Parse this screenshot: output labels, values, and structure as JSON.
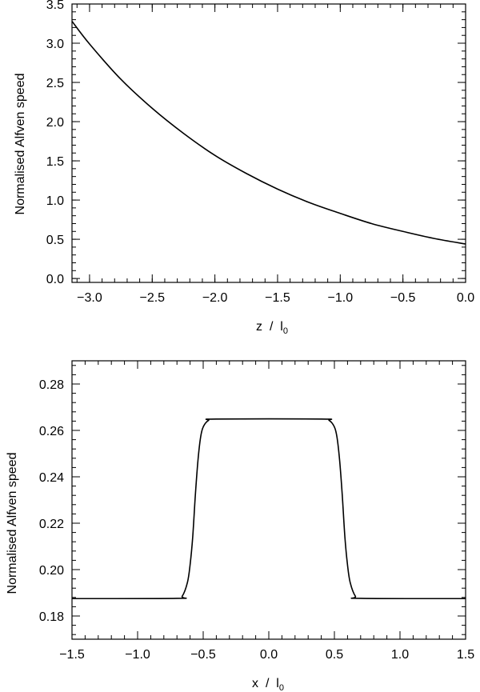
{
  "chart_data": [
    {
      "type": "line",
      "title": "",
      "xlabel": {
        "main": "z  /  l",
        "sub": "0"
      },
      "ylabel": "Normalised Alfven speed",
      "xlim": [
        -3.14,
        0.0
      ],
      "ylim": [
        -0.05,
        3.5
      ],
      "xticks": [
        -3.0,
        -2.5,
        -2.0,
        -1.5,
        -1.0,
        -0.5,
        0.0
      ],
      "xtick_labels": [
        "−3.0",
        "−2.5",
        "−2.0",
        "−1.5",
        "−1.0",
        "−0.5",
        "0.0"
      ],
      "yticks": [
        0.0,
        0.5,
        1.0,
        1.5,
        2.0,
        2.5,
        3.0,
        3.5
      ],
      "ytick_labels": [
        "0.0",
        "0.5",
        "1.0",
        "1.5",
        "2.0",
        "2.5",
        "3.0",
        "3.5"
      ],
      "grid": false,
      "series": [
        {
          "x": [
            -3.14,
            -3.0,
            -2.75,
            -2.5,
            -2.25,
            -2.0,
            -1.75,
            -1.5,
            -1.25,
            -1.0,
            -0.75,
            -0.5,
            -0.25,
            0.0
          ],
          "values": [
            3.28,
            2.99,
            2.54,
            2.17,
            1.85,
            1.57,
            1.34,
            1.14,
            0.97,
            0.83,
            0.7,
            0.6,
            0.51,
            0.44
          ]
        }
      ]
    },
    {
      "type": "line",
      "title": "",
      "xlabel": {
        "main": "x  /  l",
        "sub": "0"
      },
      "ylabel": "Normalised Alfven speed",
      "xlim": [
        -1.5,
        1.5
      ],
      "ylim": [
        0.17,
        0.29
      ],
      "xticks": [
        -1.5,
        -1.0,
        -0.5,
        0.0,
        0.5,
        1.0,
        1.5
      ],
      "xtick_labels": [
        "−1.5",
        "−1.0",
        "−0.5",
        "0.0",
        "0.5",
        "1.0",
        "1.5"
      ],
      "yticks": [
        0.18,
        0.2,
        0.22,
        0.24,
        0.26,
        0.28
      ],
      "ytick_labels": [
        "0.18",
        "0.20",
        "0.22",
        "0.24",
        "0.26",
        "0.28"
      ],
      "grid": false,
      "series": [
        {
          "x": [
            -1.5,
            -0.7,
            -0.66,
            -0.62,
            -0.6,
            -0.58,
            -0.56,
            -0.54,
            -0.52,
            -0.5,
            -0.46,
            -0.4,
            0.4,
            0.46,
            0.5,
            0.52,
            0.54,
            0.56,
            0.58,
            0.6,
            0.62,
            0.66,
            0.7,
            1.5
          ],
          "values": [
            0.1875,
            0.1876,
            0.1885,
            0.1945,
            0.202,
            0.214,
            0.232,
            0.247,
            0.257,
            0.2615,
            0.2643,
            0.2649,
            0.2649,
            0.2643,
            0.2615,
            0.257,
            0.247,
            0.232,
            0.214,
            0.202,
            0.1945,
            0.1885,
            0.1876,
            0.1875
          ]
        }
      ]
    }
  ]
}
